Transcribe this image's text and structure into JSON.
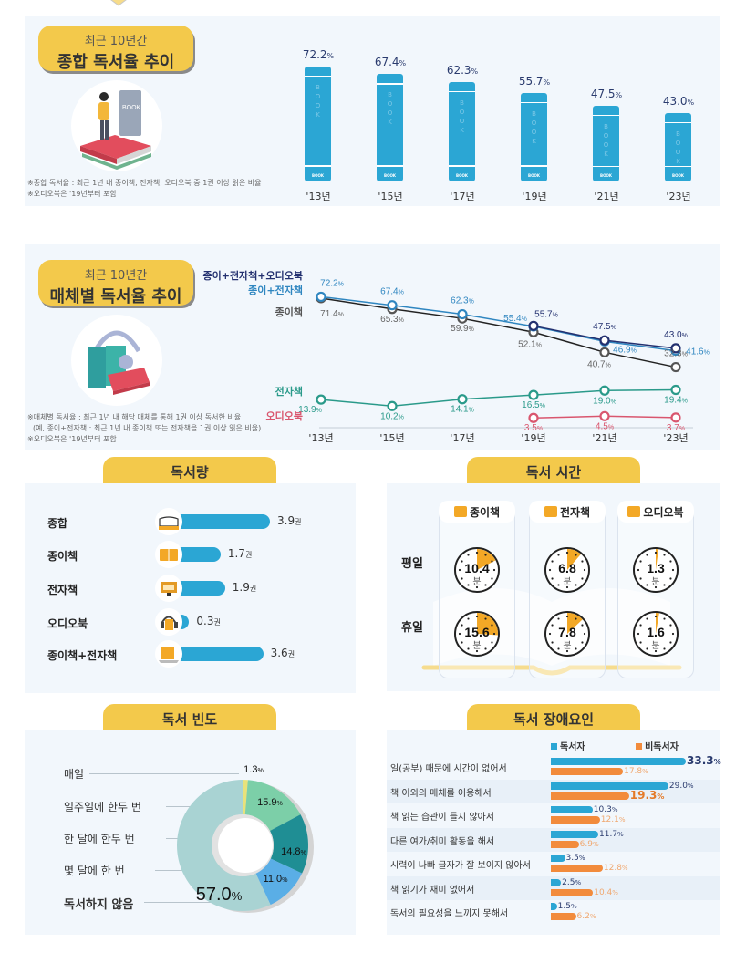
{
  "colors": {
    "accent_yellow": "#f3c94b",
    "panel_bg": "#f2f7fc",
    "bar_blue": "#2ba6d4",
    "navy": "#2a3b6e",
    "reader_blue": "#2ba6d4",
    "nonreader_orange": "#f28b3c",
    "paper_gray": "#555555",
    "paper_ebook_blue": "#2f86c0",
    "all_navy": "#23306f",
    "ebook_teal": "#2a9a8a",
    "audio_pink": "#d9566e"
  },
  "section1": {
    "title_sub": "최근 10년간",
    "title_main": "종합 독서율 추이",
    "notes": [
      "※종합 독서율 : 최근 1년 내 종이책, 전자책, 오디오북 중 1권 이상 읽은 비율",
      "※오디오북은 '19년부터 포함"
    ],
    "book_spine_text": "BOOK",
    "book_foot_text": "BOOK"
  },
  "section2": {
    "title_sub": "최근 10년간",
    "title_main": "매체별 독서율 추이",
    "notes": [
      "※매체별 독서율 : 최근 1년 내 해당 매체를 통해 1권 이상 독서한 비율",
      "(예, 종이+전자책 : 최근 1년 내 종이책 또는 전자책을 1권 이상 읽은 비율)",
      "※오디오북은 '19년부터 포함"
    ]
  },
  "reading_volume": {
    "header": "독서량",
    "unit": "권",
    "items": [
      {
        "label": "종합",
        "value": 3.9,
        "value_text": "3.9",
        "icon": "open-book-icon"
      },
      {
        "label": "종이책",
        "value": 1.7,
        "value_text": "1.7",
        "icon": "paper-book-icon"
      },
      {
        "label": "전자책",
        "value": 1.9,
        "value_text": "1.9",
        "icon": "monitor-icon"
      },
      {
        "label": "오디오북",
        "value": 0.3,
        "value_text": "0.3",
        "icon": "headphones-icon"
      },
      {
        "label": "종이책+전자책",
        "value": 3.6,
        "value_text": "3.6",
        "icon": "laptop-books-icon"
      }
    ]
  },
  "reading_time": {
    "header": "독서 시간",
    "unit": "분",
    "rows": [
      "평일",
      "휴일"
    ],
    "columns": [
      {
        "label": "종이책",
        "icon": "paper-book-icon",
        "weekday": 10.4,
        "weekend": 15.6,
        "weekday_text": "10.4",
        "weekend_text": "15.6"
      },
      {
        "label": "전자책",
        "icon": "monitor-icon",
        "weekday": 6.8,
        "weekend": 7.8,
        "weekday_text": "6.8",
        "weekend_text": "7.8"
      },
      {
        "label": "오디오북",
        "icon": "headphones-icon",
        "weekday": 1.3,
        "weekend": 1.6,
        "weekday_text": "1.3",
        "weekend_text": "1.6"
      }
    ]
  },
  "reading_frequency": {
    "header": "독서 빈도",
    "labels": [
      "매일",
      "일주일에 한두 번",
      "한 달에 한두 번",
      "몇 달에 한 번",
      "독서하지 않음"
    ]
  },
  "obstacles": {
    "header": "독서 장애요인",
    "legend": [
      "독서자",
      "비독서자"
    ]
  },
  "chart_data": [
    {
      "type": "bar",
      "title": "최근 10년간 종합 독서율 추이",
      "categories": [
        "'13년",
        "'15년",
        "'17년",
        "'19년",
        "'21년",
        "'23년"
      ],
      "values": [
        72.2,
        67.4,
        62.3,
        55.7,
        47.5,
        43.0
      ],
      "value_labels": [
        "72.2",
        "67.4",
        "62.3",
        "55.7",
        "47.5",
        "43.0"
      ],
      "unit": "%",
      "ylim": [
        0,
        80
      ],
      "grid": false
    },
    {
      "type": "line",
      "title": "최근 10년간 매체별 독서율 추이",
      "categories": [
        "'13년",
        "'15년",
        "'17년",
        "'19년",
        "'21년",
        "'23년"
      ],
      "unit": "%",
      "ylim": [
        0,
        75
      ],
      "grid": false,
      "series": [
        {
          "name": "종이+전자책+오디오북",
          "values": [
            null,
            null,
            null,
            55.7,
            47.5,
            43.0
          ],
          "labels": [
            "",
            "",
            "",
            "55.7",
            "47.5",
            "43.0"
          ]
        },
        {
          "name": "종이+전자책",
          "values": [
            72.2,
            67.4,
            62.3,
            55.4,
            46.9,
            41.6
          ],
          "labels": [
            "72.2",
            "67.4",
            "62.3",
            "55.4",
            "46.9",
            "41.6"
          ]
        },
        {
          "name": "종이책",
          "values": [
            71.4,
            65.3,
            59.9,
            52.1,
            40.7,
            32.3
          ],
          "labels": [
            "71.4",
            "65.3",
            "59.9",
            "52.1",
            "40.7",
            "32.3"
          ]
        },
        {
          "name": "전자책",
          "values": [
            13.9,
            10.2,
            14.1,
            16.5,
            19.0,
            19.4
          ],
          "labels": [
            "13.9",
            "10.2",
            "14.1",
            "16.5",
            "19.0",
            "19.4"
          ]
        },
        {
          "name": "오디오북",
          "values": [
            null,
            null,
            null,
            3.5,
            4.5,
            3.7
          ],
          "labels": [
            "",
            "",
            "",
            "3.5",
            "4.5",
            "3.7"
          ]
        }
      ]
    },
    {
      "type": "bar",
      "title": "독서량",
      "categories": [
        "종합",
        "종이책",
        "전자책",
        "오디오북",
        "종이책+전자책"
      ],
      "values": [
        3.9,
        1.7,
        1.9,
        0.3,
        3.6
      ],
      "unit": "권",
      "orientation": "horizontal"
    },
    {
      "type": "table",
      "title": "독서 시간",
      "rows": [
        "평일",
        "휴일"
      ],
      "columns": [
        "종이책",
        "전자책",
        "오디오북"
      ],
      "values": [
        [
          10.4,
          6.8,
          1.3
        ],
        [
          15.6,
          7.8,
          1.6
        ]
      ],
      "unit": "분"
    },
    {
      "type": "pie",
      "title": "독서 빈도",
      "categories": [
        "매일",
        "일주일에 한두 번",
        "한 달에 한두 번",
        "몇 달에 한 번",
        "독서하지 않음"
      ],
      "values": [
        1.3,
        15.9,
        14.8,
        11.0,
        57.0
      ],
      "value_labels": [
        "1.3",
        "15.9",
        "14.8",
        "11.0",
        "57.0"
      ],
      "colors": [
        "#e8e27a",
        "#7ccfa8",
        "#1f8e94",
        "#5aaee6",
        "#a9d3d3"
      ],
      "unit": "%",
      "donut": true
    },
    {
      "type": "bar",
      "title": "독서 장애요인",
      "orientation": "horizontal",
      "categories": [
        "일(공부) 때문에 시간이 없어서",
        "책 이외의 매체를 이용해서",
        "책 읽는 습관이 들지 않아서",
        "다른 여가/취미 활동을 해서",
        "시력이 나빠 글자가 잘 보이지 않아서",
        "책 읽기가 재미 없어서",
        "독서의 필요성을 느끼지 못해서"
      ],
      "series": [
        {
          "name": "독서자",
          "values": [
            33.3,
            29.0,
            10.3,
            11.7,
            3.5,
            2.5,
            1.5
          ],
          "labels": [
            "33.3",
            "29.0",
            "10.3",
            "11.7",
            "3.5",
            "2.5",
            "1.5"
          ]
        },
        {
          "name": "비독서자",
          "values": [
            17.8,
            19.3,
            12.1,
            6.9,
            12.8,
            10.4,
            6.2
          ],
          "labels": [
            "17.8",
            "19.3",
            "12.1",
            "6.9",
            "12.8",
            "10.4",
            "6.2"
          ]
        }
      ],
      "unit": "%",
      "legend": "top-right"
    }
  ]
}
